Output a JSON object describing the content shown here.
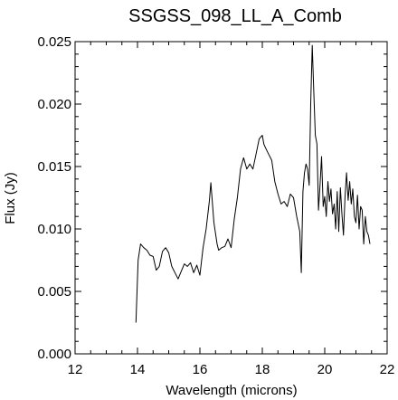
{
  "chart_data": {
    "type": "line",
    "title": "SSGSS_098_LL_A_Comb",
    "xlabel": "Wavelength (microns)",
    "ylabel": "Flux (Jy)",
    "xlim": [
      12,
      22
    ],
    "ylim": [
      0.0,
      0.025
    ],
    "xticks": [
      12,
      14,
      16,
      18,
      20,
      22
    ],
    "xtick_labels": [
      "12",
      "14",
      "16",
      "18",
      "20",
      "22"
    ],
    "yticks": [
      0.0,
      0.005,
      0.01,
      0.015,
      0.02,
      0.025
    ],
    "ytick_labels": [
      "0.000",
      "0.005",
      "0.010",
      "0.015",
      "0.020",
      "0.025"
    ],
    "grid": false,
    "legend": "none",
    "line_color": "#000000",
    "series": [
      {
        "x": [
          13.95,
          14.02,
          14.1,
          14.2,
          14.3,
          14.4,
          14.5,
          14.6,
          14.7,
          14.8,
          14.9,
          15.0,
          15.1,
          15.2,
          15.3,
          15.4,
          15.5,
          15.6,
          15.7,
          15.8,
          15.9,
          16.0,
          16.1,
          16.2,
          16.3,
          16.35,
          16.45,
          16.55,
          16.6,
          16.7,
          16.8,
          16.9,
          17.0,
          17.1,
          17.2,
          17.3,
          17.4,
          17.5,
          17.6,
          17.7,
          17.8,
          17.9,
          18.0,
          18.05,
          18.1,
          18.2,
          18.3,
          18.4,
          18.5,
          18.6,
          18.7,
          18.8,
          18.9,
          19.0,
          19.1,
          19.2,
          19.25,
          19.3,
          19.35,
          19.4,
          19.45,
          19.5,
          19.55,
          19.6,
          19.65,
          19.7,
          19.75,
          19.8,
          19.85,
          19.9,
          19.95,
          20.0,
          20.05,
          20.1,
          20.15,
          20.2,
          20.25,
          20.3,
          20.35,
          20.4,
          20.45,
          20.5,
          20.55,
          20.6,
          20.65,
          20.7,
          20.75,
          20.8,
          20.85,
          20.9,
          20.95,
          21.0,
          21.05,
          21.1,
          21.15,
          21.2,
          21.25,
          21.3,
          21.35,
          21.4,
          21.45
        ],
        "y": [
          0.0025,
          0.0075,
          0.0088,
          0.0085,
          0.0083,
          0.0079,
          0.0078,
          0.0067,
          0.007,
          0.0082,
          0.0085,
          0.0081,
          0.007,
          0.0065,
          0.006,
          0.0066,
          0.0072,
          0.007,
          0.0073,
          0.0065,
          0.0071,
          0.0063,
          0.0085,
          0.01,
          0.0122,
          0.0137,
          0.0105,
          0.0088,
          0.0083,
          0.0085,
          0.0086,
          0.0092,
          0.0085,
          0.0108,
          0.0125,
          0.0148,
          0.0157,
          0.0148,
          0.0152,
          0.0148,
          0.016,
          0.0172,
          0.0175,
          0.0168,
          0.0165,
          0.016,
          0.0155,
          0.0138,
          0.0128,
          0.012,
          0.0122,
          0.0118,
          0.0128,
          0.0125,
          0.011,
          0.0098,
          0.0065,
          0.013,
          0.0145,
          0.0152,
          0.0148,
          0.0135,
          0.02,
          0.0247,
          0.021,
          0.0175,
          0.0168,
          0.0115,
          0.0135,
          0.0158,
          0.0118,
          0.0126,
          0.011,
          0.0138,
          0.0122,
          0.0132,
          0.0112,
          0.012,
          0.01,
          0.013,
          0.0098,
          0.0133,
          0.0112,
          0.0095,
          0.0125,
          0.0145,
          0.0123,
          0.0138,
          0.012,
          0.0132,
          0.011,
          0.0105,
          0.0127,
          0.01,
          0.0118,
          0.0115,
          0.0088,
          0.011,
          0.0098,
          0.0095,
          0.0088
        ]
      }
    ]
  }
}
